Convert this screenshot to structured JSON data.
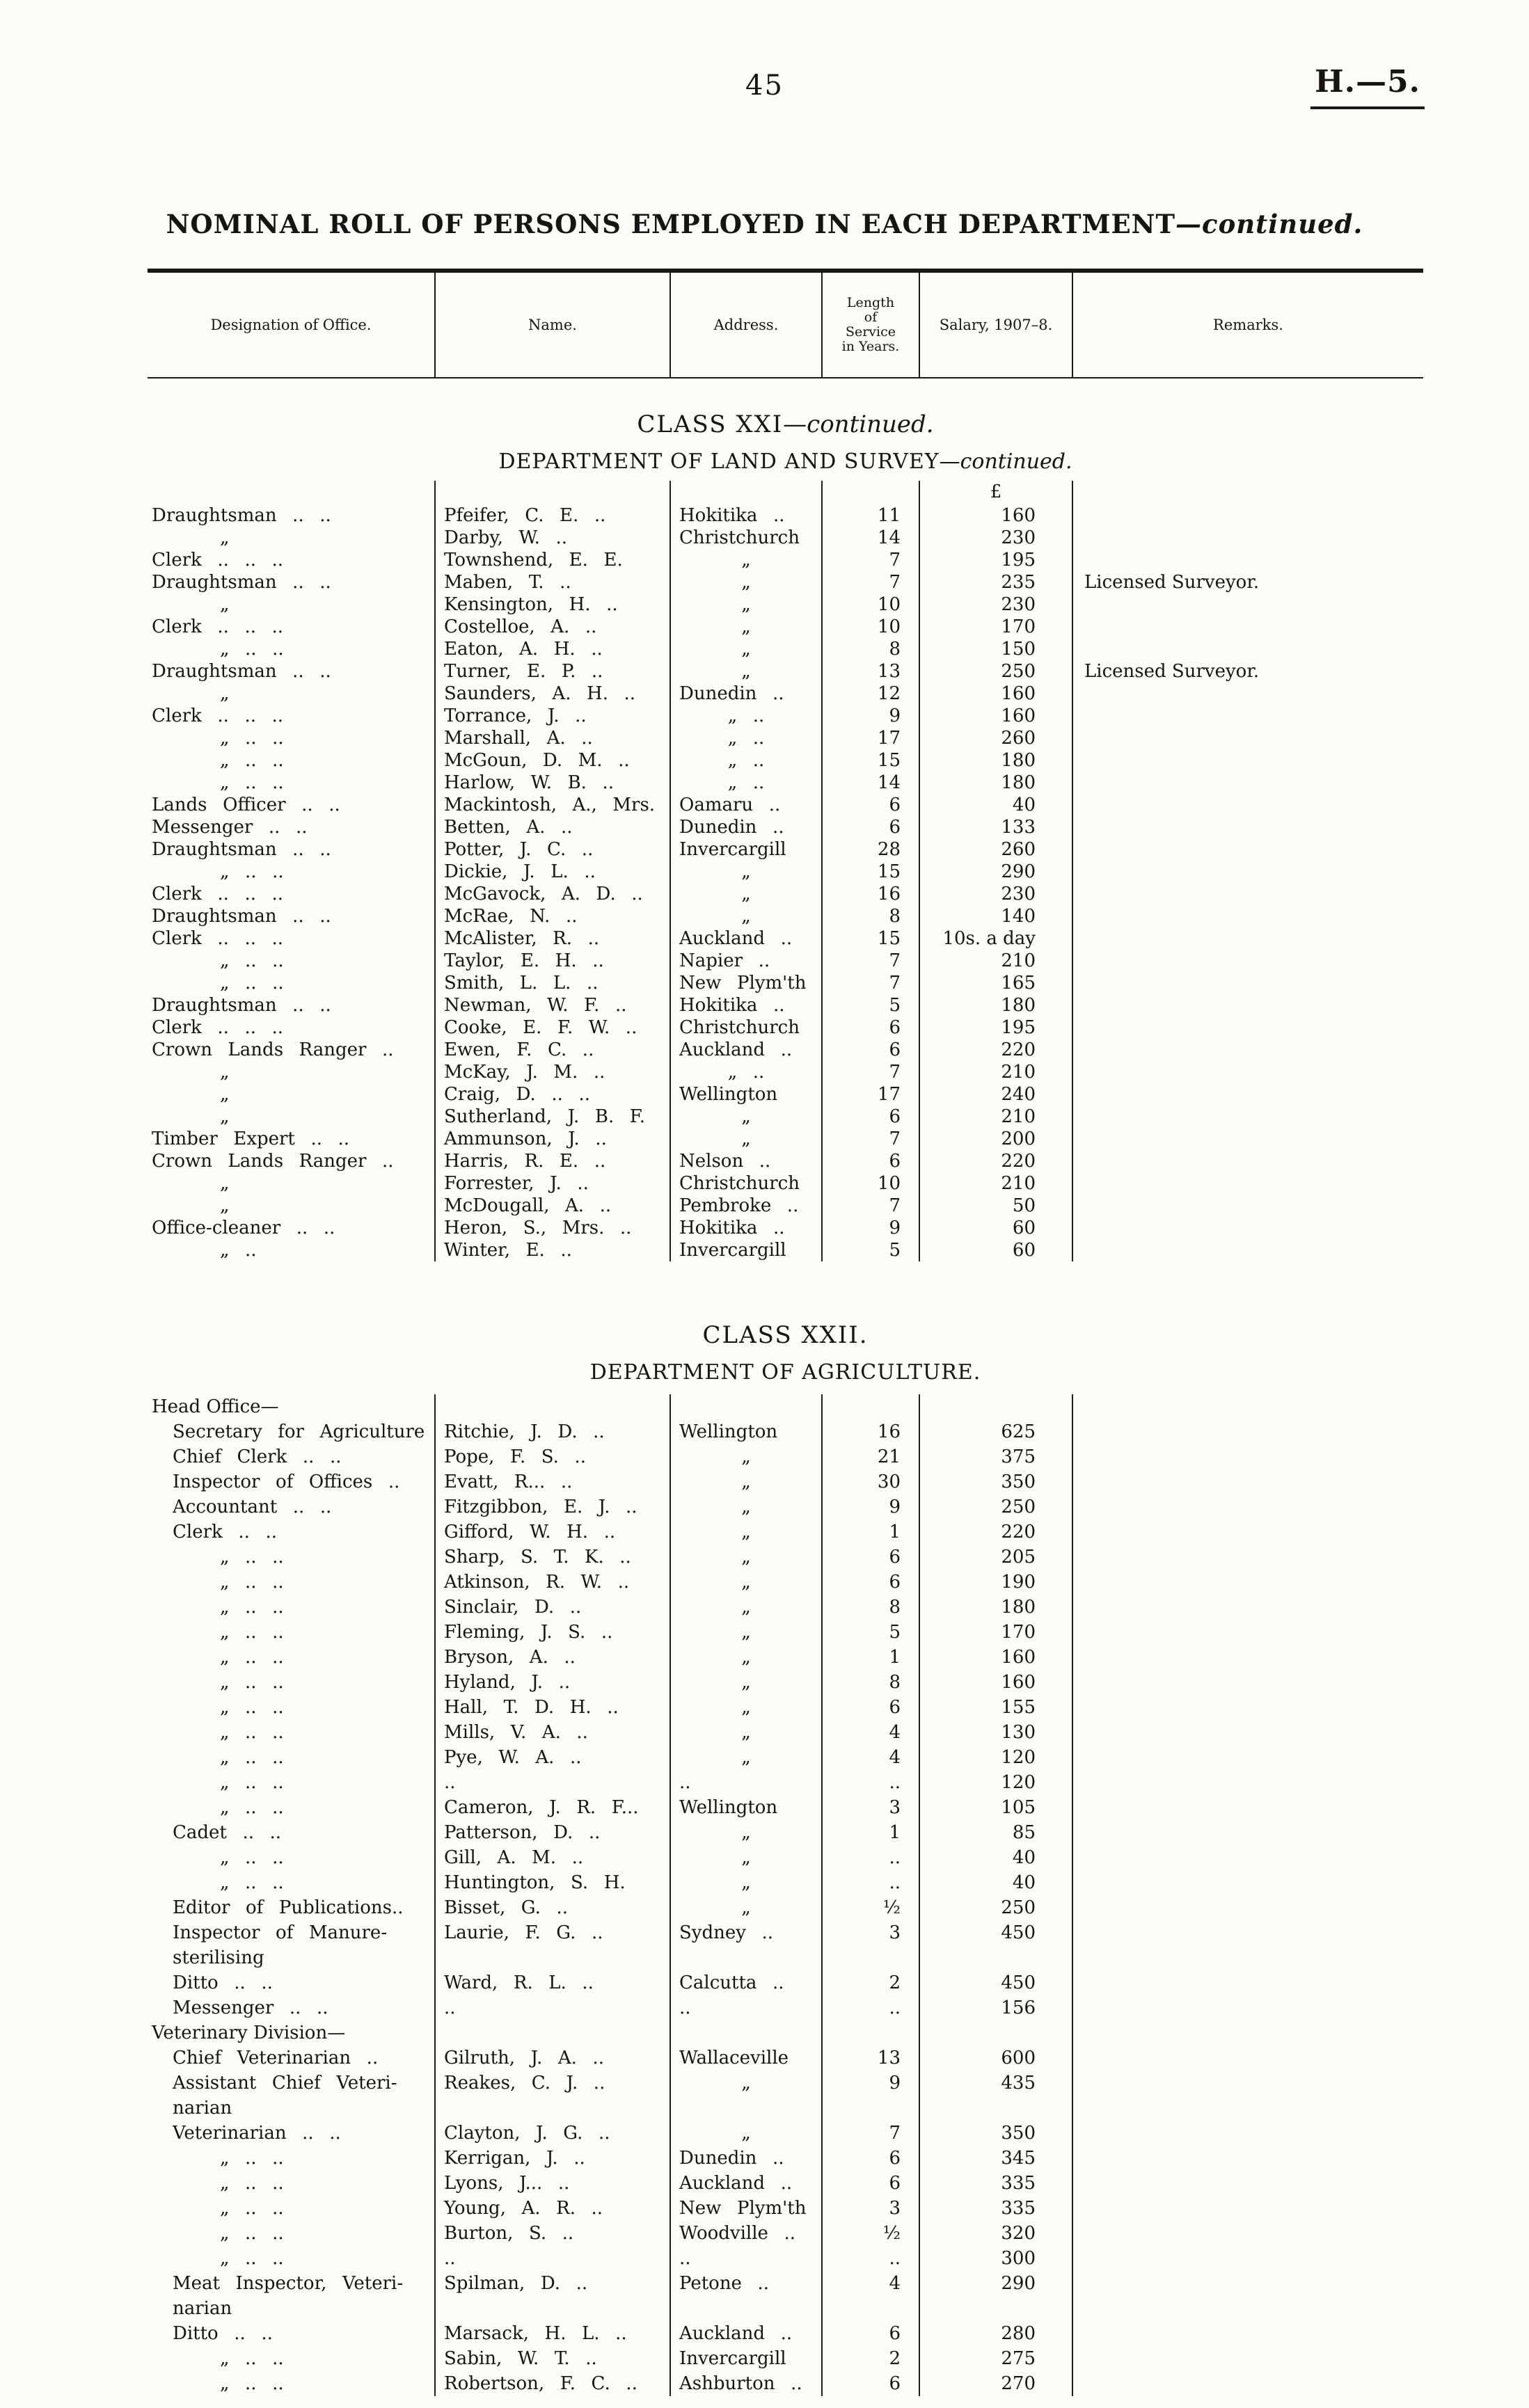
{
  "page": {
    "number": "45",
    "doc_ref": "H.—5."
  },
  "title": {
    "main": "NOMINAL ROLL OF PERSONS EMPLOYED IN EACH DEPARTMENT",
    "cont": "—continued."
  },
  "table_header": {
    "designation": "Designation of Office.",
    "name": "Name.",
    "address": "Address.",
    "service": "Length\nof\nService\nin Years.",
    "salary": "Salary, 1907–8.",
    "remarks": "Remarks."
  },
  "sections": [
    {
      "id": "land-survey",
      "class_line": "CLASS XXI",
      "class_cont": "—continued.",
      "dept_line": "DEPARTMENT OF LAND AND SURVEY",
      "dept_cont": "—continued.",
      "currency": "£",
      "rows": [
        {
          "d": "Draughtsman .. ..",
          "di": 0,
          "n": "Pfeifer, C. E. ..",
          "a": "Hokitika ..",
          "s": "11",
          "y": "160",
          "r": ""
        },
        {
          "d": "„",
          "di": 2,
          "n": "Darby, W. ..",
          "a": "Christchurch",
          "s": "14",
          "y": "230",
          "r": ""
        },
        {
          "d": "Clerk .. .. ..",
          "di": 0,
          "n": "Townshend, E. E.",
          "a": "„",
          "s": "7",
          "y": "195",
          "r": ""
        },
        {
          "d": "Draughtsman .. ..",
          "di": 0,
          "n": "Maben, T. ..",
          "a": "„",
          "s": "7",
          "y": "235",
          "r": "Licensed Surveyor."
        },
        {
          "d": "„",
          "di": 2,
          "n": "Kensington, H. ..",
          "a": "„",
          "s": "10",
          "y": "230",
          "r": ""
        },
        {
          "d": "Clerk .. .. ..",
          "di": 0,
          "n": "Costelloe, A. ..",
          "a": "„",
          "s": "10",
          "y": "170",
          "r": ""
        },
        {
          "d": "„ .. ..",
          "di": 2,
          "n": "Eaton, A. H. ..",
          "a": "„",
          "s": "8",
          "y": "150",
          "r": ""
        },
        {
          "d": "Draughtsman .. ..",
          "di": 0,
          "n": "Turner, E. P. ..",
          "a": "„",
          "s": "13",
          "y": "250",
          "r": "Licensed Surveyor."
        },
        {
          "d": "„",
          "di": 2,
          "n": "Saunders, A. H. ..",
          "a": "Dunedin ..",
          "s": "12",
          "y": "160",
          "r": ""
        },
        {
          "d": "Clerk .. .. ..",
          "di": 0,
          "n": "Torrance, J. ..",
          "a": "„ ..",
          "s": "9",
          "y": "160",
          "r": ""
        },
        {
          "d": "„ .. ..",
          "di": 2,
          "n": "Marshall, A. ..",
          "a": "„ ..",
          "s": "17",
          "y": "260",
          "r": ""
        },
        {
          "d": "„ .. ..",
          "di": 2,
          "n": "McGoun, D. M. ..",
          "a": "„ ..",
          "s": "15",
          "y": "180",
          "r": ""
        },
        {
          "d": "„ .. ..",
          "di": 2,
          "n": "Harlow, W. B. ..",
          "a": "„ ..",
          "s": "14",
          "y": "180",
          "r": ""
        },
        {
          "d": "Lands Officer .. ..",
          "di": 0,
          "n": "Mackintosh, A., Mrs.",
          "a": "Oamaru ..",
          "s": "6",
          "y": "40",
          "r": ""
        },
        {
          "d": "Messenger .. ..",
          "di": 0,
          "n": "Betten, A. ..",
          "a": "Dunedin ..",
          "s": "6",
          "y": "133",
          "r": ""
        },
        {
          "d": "Draughtsman .. ..",
          "di": 0,
          "n": "Potter, J. C. ..",
          "a": "Invercargill",
          "s": "28",
          "y": "260",
          "r": ""
        },
        {
          "d": "„ .. ..",
          "di": 2,
          "n": "Dickie, J. L. ..",
          "a": "„",
          "s": "15",
          "y": "290",
          "r": ""
        },
        {
          "d": "Clerk .. .. ..",
          "di": 0,
          "n": "McGavock, A. D. ..",
          "a": "„",
          "s": "16",
          "y": "230",
          "r": ""
        },
        {
          "d": "Draughtsman .. ..",
          "di": 0,
          "n": "McRae, N. ..",
          "a": "„",
          "s": "8",
          "y": "140",
          "r": ""
        },
        {
          "d": "Clerk .. .. ..",
          "di": 0,
          "n": "McAlister, R. ..",
          "a": "Auckland ..",
          "s": "15",
          "y": "10s. a day",
          "r": ""
        },
        {
          "d": "„ .. ..",
          "di": 2,
          "n": "Taylor, E. H. ..",
          "a": "Napier ..",
          "s": "7",
          "y": "210",
          "r": ""
        },
        {
          "d": "„ .. ..",
          "di": 2,
          "n": "Smith, L. L. ..",
          "a": "New Plym'th",
          "s": "7",
          "y": "165",
          "r": ""
        },
        {
          "d": "Draughtsman .. ..",
          "di": 0,
          "n": "Newman, W. F. ..",
          "a": "Hokitika ..",
          "s": "5",
          "y": "180",
          "r": ""
        },
        {
          "d": "Clerk .. .. ..",
          "di": 0,
          "n": "Cooke, E. F. W. ..",
          "a": "Christchurch",
          "s": "6",
          "y": "195",
          "r": ""
        },
        {
          "d": "Crown Lands Ranger ..",
          "di": 0,
          "n": "Ewen, F. C. ..",
          "a": "Auckland ..",
          "s": "6",
          "y": "220",
          "r": ""
        },
        {
          "d": "„",
          "di": 2,
          "n": "McKay, J. M. ..",
          "a": "„ ..",
          "s": "7",
          "y": "210",
          "r": ""
        },
        {
          "d": "„",
          "di": 2,
          "n": "Craig, D. .. ..",
          "a": "Wellington",
          "s": "17",
          "y": "240",
          "r": ""
        },
        {
          "d": "„",
          "di": 2,
          "n": "Sutherland, J. B. F.",
          "a": "„",
          "s": "6",
          "y": "210",
          "r": ""
        },
        {
          "d": "Timber Expert .. ..",
          "di": 0,
          "n": "Ammunson, J. ..",
          "a": "„",
          "s": "7",
          "y": "200",
          "r": ""
        },
        {
          "d": "Crown Lands Ranger ..",
          "di": 0,
          "n": "Harris, R. E. ..",
          "a": "Nelson ..",
          "s": "6",
          "y": "220",
          "r": ""
        },
        {
          "d": "„",
          "di": 2,
          "n": "Forrester, J. ..",
          "a": "Christchurch",
          "s": "10",
          "y": "210",
          "r": ""
        },
        {
          "d": "„",
          "di": 2,
          "n": "McDougall, A. ..",
          "a": "Pembroke ..",
          "s": "7",
          "y": "50",
          "r": ""
        },
        {
          "d": "Office-cleaner .. ..",
          "di": 0,
          "n": "Heron, S., Mrs. ..",
          "a": "Hokitika ..",
          "s": "9",
          "y": "60",
          "r": ""
        },
        {
          "d": "„ ..",
          "di": 2,
          "n": "Winter, E. ..",
          "a": "Invercargill",
          "s": "5",
          "y": "60",
          "r": ""
        }
      ]
    },
    {
      "id": "agriculture",
      "class_line": "CLASS XXII.",
      "class_cont": "",
      "dept_line": "DEPARTMENT OF AGRICULTURE.",
      "dept_cont": "",
      "currency": "",
      "rows": [
        {
          "d": "Head Office—",
          "g": true
        },
        {
          "d": "Secretary for Agriculture",
          "di": 1,
          "n": "Ritchie, J. D. ..",
          "a": "Wellington",
          "s": "16",
          "y": "625",
          "r": ""
        },
        {
          "d": "Chief Clerk .. ..",
          "di": 1,
          "n": "Pope, F. S. ..",
          "a": "„",
          "s": "21",
          "y": "375",
          "r": ""
        },
        {
          "d": "Inspector of Offices ..",
          "di": 1,
          "n": "Evatt, R... ..",
          "a": "„",
          "s": "30",
          "y": "350",
          "r": ""
        },
        {
          "d": "Accountant .. ..",
          "di": 1,
          "n": "Fitzgibbon, E. J. ..",
          "a": "„",
          "s": "9",
          "y": "250",
          "r": ""
        },
        {
          "d": "Clerk .. ..",
          "di": 1,
          "n": "Gifford, W. H. ..",
          "a": "„",
          "s": "1",
          "y": "220",
          "r": ""
        },
        {
          "d": "„ .. ..",
          "di": 2,
          "n": "Sharp, S. T. K. ..",
          "a": "„",
          "s": "6",
          "y": "205",
          "r": ""
        },
        {
          "d": "„ .. ..",
          "di": 2,
          "n": "Atkinson, R. W. ..",
          "a": "„",
          "s": "6",
          "y": "190",
          "r": ""
        },
        {
          "d": "„ .. ..",
          "di": 2,
          "n": "Sinclair, D. ..",
          "a": "„",
          "s": "8",
          "y": "180",
          "r": ""
        },
        {
          "d": "„ .. ..",
          "di": 2,
          "n": "Fleming, J. S. ..",
          "a": "„",
          "s": "5",
          "y": "170",
          "r": ""
        },
        {
          "d": "„ .. ..",
          "di": 2,
          "n": "Bryson, A. ..",
          "a": "„",
          "s": "1",
          "y": "160",
          "r": ""
        },
        {
          "d": "„ .. ..",
          "di": 2,
          "n": "Hyland, J. ..",
          "a": "„",
          "s": "8",
          "y": "160",
          "r": ""
        },
        {
          "d": "„ .. ..",
          "di": 2,
          "n": "Hall, T. D. H. ..",
          "a": "„",
          "s": "6",
          "y": "155",
          "r": ""
        },
        {
          "d": "„ .. ..",
          "di": 2,
          "n": "Mills, V. A. ..",
          "a": "„",
          "s": "4",
          "y": "130",
          "r": ""
        },
        {
          "d": "„ .. ..",
          "di": 2,
          "n": "Pye, W. A. ..",
          "a": "„",
          "s": "4",
          "y": "120",
          "r": ""
        },
        {
          "d": "„ .. ..",
          "di": 2,
          "n": "..",
          "a": "..",
          "s": "..",
          "y": "120",
          "r": ""
        },
        {
          "d": "„ .. ..",
          "di": 2,
          "n": "Cameron, J. R. F...",
          "a": "Wellington",
          "s": "3",
          "y": "105",
          "r": ""
        },
        {
          "d": "Cadet .. ..",
          "di": 1,
          "n": "Patterson, D. ..",
          "a": "„",
          "s": "1",
          "y": "85",
          "r": ""
        },
        {
          "d": "„ .. ..",
          "di": 2,
          "n": "Gill, A. M. ..",
          "a": "„",
          "s": "..",
          "y": "40",
          "r": ""
        },
        {
          "d": "„ .. ..",
          "di": 2,
          "n": "Huntington, S. H.",
          "a": "„",
          "s": "..",
          "y": "40",
          "r": ""
        },
        {
          "d": "Editor of Publications..",
          "di": 1,
          "n": "Bisset, G. ..",
          "a": "„",
          "s": "½",
          "y": "250",
          "r": ""
        },
        {
          "d": "Inspector of Manure-\n sterilising",
          "di": 1,
          "n": "Laurie, F. G. ..",
          "a": "Sydney ..",
          "s": "3",
          "y": "450",
          "r": ""
        },
        {
          "d": "Ditto .. ..",
          "di": 1,
          "n": "Ward, R. L. ..",
          "a": "Calcutta ..",
          "s": "2",
          "y": "450",
          "r": ""
        },
        {
          "d": "Messenger .. ..",
          "di": 1,
          "n": "..",
          "a": "..",
          "s": "..",
          "y": "156",
          "r": ""
        },
        {
          "d": "Veterinary Division—",
          "g": true
        },
        {
          "d": "Chief Veterinarian ..",
          "di": 1,
          "n": "Gilruth, J. A. ..",
          "a": "Wallaceville",
          "s": "13",
          "y": "600",
          "r": ""
        },
        {
          "d": "Assistant Chief Veteri-\n narian",
          "di": 1,
          "n": "Reakes, C. J. ..",
          "a": "„",
          "s": "9",
          "y": "435",
          "r": ""
        },
        {
          "d": "Veterinarian .. ..",
          "di": 1,
          "n": "Clayton, J. G. ..",
          "a": "„",
          "s": "7",
          "y": "350",
          "r": ""
        },
        {
          "d": "„ .. ..",
          "di": 2,
          "n": "Kerrigan, J. ..",
          "a": "Dunedin ..",
          "s": "6",
          "y": "345",
          "r": ""
        },
        {
          "d": "„ .. ..",
          "di": 2,
          "n": "Lyons, J... ..",
          "a": "Auckland ..",
          "s": "6",
          "y": "335",
          "r": ""
        },
        {
          "d": "„ .. ..",
          "di": 2,
          "n": "Young, A. R. ..",
          "a": "New Plym'th",
          "s": "3",
          "y": "335",
          "r": ""
        },
        {
          "d": "„ .. ..",
          "di": 2,
          "n": "Burton, S. ..",
          "a": "Woodville ..",
          "s": "½",
          "y": "320",
          "r": ""
        },
        {
          "d": "„ .. ..",
          "di": 2,
          "n": "..",
          "a": "..",
          "s": "..",
          "y": "300",
          "r": ""
        },
        {
          "d": "Meat Inspector, Veteri-\n narian",
          "di": 1,
          "n": "Spilman, D. ..",
          "a": "Petone ..",
          "s": "4",
          "y": "290",
          "r": ""
        },
        {
          "d": "Ditto .. ..",
          "di": 1,
          "n": "Marsack, H. L. ..",
          "a": "Auckland ..",
          "s": "6",
          "y": "280",
          "r": ""
        },
        {
          "d": "„ .. ..",
          "di": 2,
          "n": "Sabin, W. T. ..",
          "a": "Invercargill",
          "s": "2",
          "y": "275",
          "r": ""
        },
        {
          "d": "„ .. ..",
          "di": 2,
          "n": "Robertson, F. C. ..",
          "a": "Ashburton ..",
          "s": "6",
          "y": "270",
          "r": ""
        }
      ]
    }
  ]
}
